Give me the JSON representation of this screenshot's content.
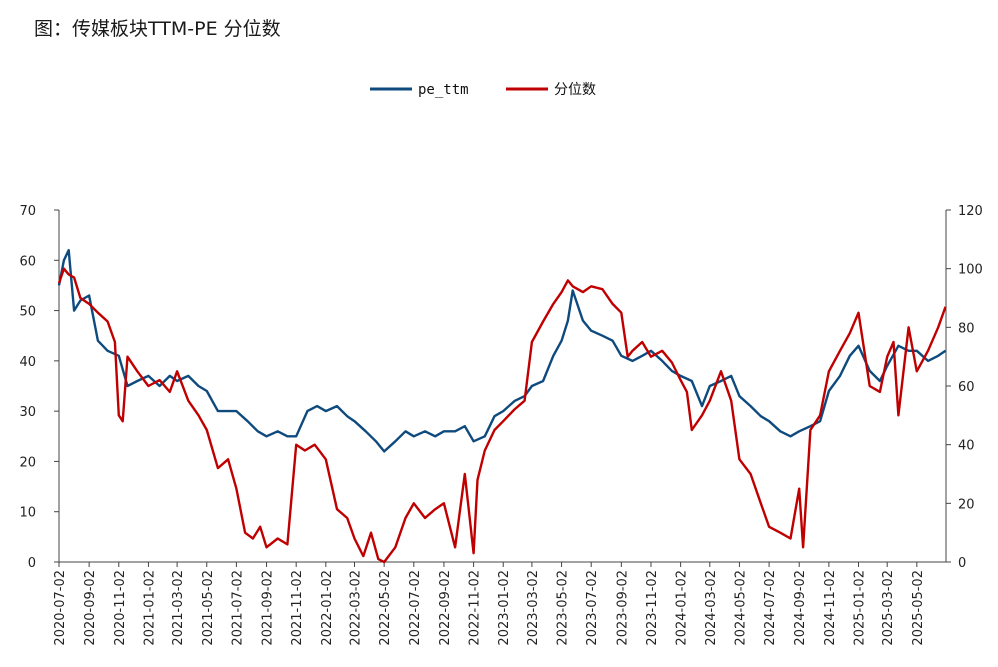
{
  "chart_data": {
    "type": "line",
    "title": "图：传媒板块TTM-PE 分位数",
    "left_axis": {
      "ylim": [
        0,
        70
      ],
      "ticks": [
        0,
        10,
        20,
        30,
        40,
        50,
        60,
        70
      ]
    },
    "right_axis": {
      "ylim": [
        0,
        120
      ],
      "ticks": [
        0,
        20,
        40,
        60,
        80,
        100,
        120
      ]
    },
    "x_tick_labels": [
      "2020-07-02",
      "2020-09-02",
      "2020-11-02",
      "2021-01-02",
      "2021-03-02",
      "2021-05-02",
      "2021-07-02",
      "2021-09-02",
      "2021-11-02",
      "2022-01-02",
      "2022-03-02",
      "2022-05-02",
      "2022-07-02",
      "2022-09-02",
      "2022-11-02",
      "2023-01-02",
      "2023-03-02",
      "2023-05-02",
      "2023-07-02",
      "2023-09-02",
      "2023-11-02",
      "2024-01-02",
      "2024-03-02",
      "2024-05-02",
      "2024-07-02",
      "2024-09-02",
      "2024-11-02",
      "2025-01-02",
      "2025-03-02",
      "2025-05-02"
    ],
    "legend_position": "top-center",
    "grid": false,
    "series": [
      {
        "name": "pe_ttm",
        "axis": "left",
        "color": "#0e4a7e",
        "x": [
          "2020-07-02",
          "2020-07-12",
          "2020-07-22",
          "2020-08-02",
          "2020-08-15",
          "2020-09-02",
          "2020-09-20",
          "2020-10-10",
          "2020-11-02",
          "2020-11-20",
          "2020-12-10",
          "2021-01-02",
          "2021-01-25",
          "2021-02-15",
          "2021-03-02",
          "2021-03-25",
          "2021-04-15",
          "2021-05-02",
          "2021-05-25",
          "2021-06-15",
          "2021-07-02",
          "2021-07-25",
          "2021-08-15",
          "2021-09-02",
          "2021-09-25",
          "2021-10-15",
          "2021-11-02",
          "2021-11-25",
          "2021-12-15",
          "2022-01-02",
          "2022-01-25",
          "2022-02-15",
          "2022-03-02",
          "2022-03-25",
          "2022-04-15",
          "2022-05-02",
          "2022-05-25",
          "2022-06-15",
          "2022-07-02",
          "2022-07-25",
          "2022-08-15",
          "2022-09-02",
          "2022-09-25",
          "2022-10-15",
          "2022-11-02",
          "2022-11-25",
          "2022-12-15",
          "2023-01-02",
          "2023-01-25",
          "2023-02-15",
          "2023-03-02",
          "2023-03-25",
          "2023-04-15",
          "2023-05-02",
          "2023-05-15",
          "2023-05-25",
          "2023-06-15",
          "2023-07-02",
          "2023-07-25",
          "2023-08-15",
          "2023-09-02",
          "2023-09-25",
          "2023-10-15",
          "2023-11-02",
          "2023-11-25",
          "2023-12-15",
          "2024-01-02",
          "2024-01-25",
          "2024-02-15",
          "2024-03-02",
          "2024-03-25",
          "2024-04-15",
          "2024-05-02",
          "2024-05-25",
          "2024-06-15",
          "2024-07-02",
          "2024-07-25",
          "2024-08-15",
          "2024-09-02",
          "2024-09-25",
          "2024-10-15",
          "2024-11-02",
          "2024-11-25",
          "2024-12-15",
          "2025-01-02",
          "2025-01-25",
          "2025-02-15",
          "2025-03-02",
          "2025-03-25",
          "2025-04-15",
          "2025-05-02",
          "2025-05-25",
          "2025-06-15",
          "2025-06-30"
        ],
        "values": [
          55,
          60,
          62,
          50,
          52,
          53,
          44,
          42,
          41,
          35,
          36,
          37,
          35,
          37,
          36,
          37,
          35,
          34,
          30,
          30,
          30,
          28,
          26,
          25,
          26,
          25,
          25,
          30,
          31,
          30,
          31,
          29,
          28,
          26,
          24,
          22,
          24,
          26,
          25,
          26,
          25,
          26,
          26,
          27,
          24,
          25,
          29,
          30,
          32,
          33,
          35,
          36,
          41,
          44,
          48,
          54,
          48,
          46,
          45,
          44,
          41,
          40,
          41,
          42,
          40,
          38,
          37,
          36,
          31,
          35,
          36,
          37,
          33,
          31,
          29,
          28,
          26,
          25,
          26,
          27,
          28,
          34,
          37,
          41,
          43,
          38,
          36,
          39,
          43,
          42,
          42,
          40,
          41,
          42
        ]
      },
      {
        "name": "分位数",
        "axis": "right",
        "color": "#c00000",
        "x": [
          "2020-07-02",
          "2020-07-12",
          "2020-07-22",
          "2020-08-02",
          "2020-08-15",
          "2020-09-02",
          "2020-09-20",
          "2020-10-10",
          "2020-10-25",
          "2020-11-02",
          "2020-11-10",
          "2020-11-20",
          "2020-12-10",
          "2021-01-02",
          "2021-01-25",
          "2021-02-15",
          "2021-03-02",
          "2021-03-25",
          "2021-04-15",
          "2021-05-02",
          "2021-05-25",
          "2021-06-15",
          "2021-07-02",
          "2021-07-20",
          "2021-08-05",
          "2021-08-20",
          "2021-09-02",
          "2021-09-25",
          "2021-10-15",
          "2021-11-02",
          "2021-11-20",
          "2021-12-10",
          "2022-01-02",
          "2022-01-25",
          "2022-02-15",
          "2022-03-02",
          "2022-03-20",
          "2022-04-05",
          "2022-04-20",
          "2022-05-02",
          "2022-05-25",
          "2022-06-15",
          "2022-07-02",
          "2022-07-25",
          "2022-08-15",
          "2022-09-02",
          "2022-09-25",
          "2022-10-15",
          "2022-11-02",
          "2022-11-10",
          "2022-11-25",
          "2022-12-15",
          "2023-01-02",
          "2023-01-25",
          "2023-02-15",
          "2023-03-02",
          "2023-03-25",
          "2023-04-15",
          "2023-05-02",
          "2023-05-15",
          "2023-05-25",
          "2023-06-15",
          "2023-07-02",
          "2023-07-25",
          "2023-08-15",
          "2023-09-02",
          "2023-09-15",
          "2023-09-25",
          "2023-10-15",
          "2023-11-02",
          "2023-11-25",
          "2023-12-15",
          "2024-01-02",
          "2024-01-15",
          "2024-01-25",
          "2024-02-15",
          "2024-03-02",
          "2024-03-25",
          "2024-04-15",
          "2024-05-02",
          "2024-05-25",
          "2024-06-15",
          "2024-07-02",
          "2024-07-25",
          "2024-08-15",
          "2024-09-02",
          "2024-09-10",
          "2024-09-25",
          "2024-10-15",
          "2024-11-02",
          "2024-11-25",
          "2024-12-15",
          "2025-01-02",
          "2025-01-25",
          "2025-02-15",
          "2025-03-02",
          "2025-03-15",
          "2025-03-25",
          "2025-04-15",
          "2025-05-02",
          "2025-05-25",
          "2025-06-15",
          "2025-06-30"
        ],
        "values": [
          95,
          100,
          98,
          97,
          90,
          88,
          85,
          82,
          75,
          50,
          48,
          70,
          65,
          60,
          62,
          58,
          65,
          55,
          50,
          45,
          32,
          35,
          25,
          10,
          8,
          12,
          5,
          8,
          6,
          40,
          38,
          40,
          35,
          18,
          15,
          8,
          2,
          10,
          1,
          0,
          5,
          15,
          20,
          15,
          18,
          20,
          5,
          30,
          3,
          28,
          38,
          45,
          48,
          52,
          55,
          75,
          82,
          88,
          92,
          96,
          94,
          92,
          94,
          93,
          88,
          85,
          70,
          72,
          75,
          70,
          72,
          68,
          62,
          58,
          45,
          50,
          55,
          65,
          55,
          35,
          30,
          20,
          12,
          10,
          8,
          25,
          5,
          45,
          50,
          65,
          72,
          78,
          85,
          60,
          58,
          70,
          75,
          50,
          80,
          65,
          72,
          80,
          87
        ]
      }
    ]
  }
}
